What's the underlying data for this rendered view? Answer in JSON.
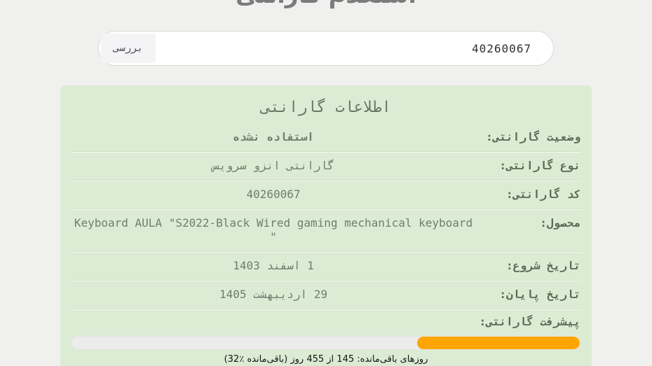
{
  "page": {
    "title": "استعلام گارانتی",
    "background_color": "#f0f0ee"
  },
  "search": {
    "value": "40260067",
    "button_label": "بررسی"
  },
  "panel": {
    "title": "اطلاعات گارانتی",
    "background_color": "#dcecd4",
    "rows": [
      {
        "label": "وضعیت گارانتی:",
        "value": "استفاده نشده",
        "bold": true
      },
      {
        "label": "نوع گارانتی:",
        "value": "گارانتی انزو سرویس",
        "bold": false
      },
      {
        "label": "کد گارانتی:",
        "value": "40260067",
        "bold": false
      },
      {
        "label": "محصول:",
        "value": "Keyboard AULA \"S2022-Black Wired gaming mechanical keyboard \"",
        "bold": false
      },
      {
        "label": "تاریخ شروع:",
        "value": "1 اسفند 1403",
        "bold": false
      },
      {
        "label": "تاریخ پایان:",
        "value": "29 اردیبهشت 1405",
        "bold": false
      }
    ],
    "progress": {
      "label": "پیشرفت گارانتی:",
      "percent_remaining": 32,
      "days_remaining": 145,
      "days_total": 455,
      "fill_color": "#ffa502",
      "track_color": "#ececec",
      "caption_main": "روزهای باقی‌مانده: 145 از 455 روز",
      "caption_paren": "(32٪ باقی‌مانده)"
    }
  }
}
